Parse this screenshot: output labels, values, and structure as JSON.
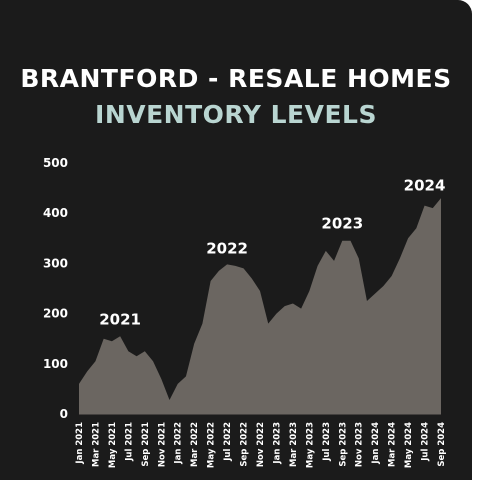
{
  "title_line1": "BRANTFORD - RESALE HOMES",
  "title_line2": "INVENTORY LEVELS",
  "colors": {
    "background": "#1b1b1b",
    "area_fill": "#6b6661",
    "title_primary": "#ffffff",
    "title_accent": "#b9d5d1",
    "text": "#ffffff"
  },
  "chart_data": {
    "type": "area",
    "title": "BRANTFORD - RESALE HOMES INVENTORY LEVELS",
    "xlabel": "",
    "ylabel": "",
    "ylim": [
      0,
      500
    ],
    "yticks": [
      0,
      100,
      200,
      300,
      400,
      500
    ],
    "grid": false,
    "x": [
      "Jan 2021",
      "Feb 2021",
      "Mar 2021",
      "Apr 2021",
      "May 2021",
      "Jun 2021",
      "Jul 2021",
      "Aug 2021",
      "Sep 2021",
      "Oct 2021",
      "Nov 2021",
      "Dec 2021",
      "Jan 2022",
      "Feb 2022",
      "Mar 2022",
      "Apr 2022",
      "May 2022",
      "Jun 2022",
      "Jul 2022",
      "Aug 2022",
      "Sep 2022",
      "Oct 2022",
      "Nov 2022",
      "Dec 2022",
      "Jan 2023",
      "Feb 2023",
      "Mar 2023",
      "Apr 2023",
      "May 2023",
      "Jun 2023",
      "Jul 2023",
      "Aug 2023",
      "Sep 2023",
      "Oct 2023",
      "Nov 2023",
      "Dec 2023",
      "Jan 2024",
      "Feb 2024",
      "Mar 2024",
      "Apr 2024",
      "May 2024",
      "Jun 2024",
      "Jul 2024",
      "Aug 2024",
      "Sep 2024"
    ],
    "xtick_labels": [
      "Jan 2021",
      "Mar 2021",
      "May 2021",
      "Jul 2021",
      "Sep 2021",
      "Nov 2021",
      "Jan 2022",
      "Mar 2022",
      "May 2022",
      "Jul 2022",
      "Sep 2022",
      "Nov 2022",
      "Jan 2023",
      "Mar 2023",
      "May 2023",
      "Jul 2023",
      "Sep 2023",
      "Nov 2023",
      "Jan 2024",
      "Mar 2024",
      "May 2024",
      "Jul 2024",
      "Sep 2024"
    ],
    "series": [
      {
        "values": [
          60,
          85,
          105,
          150,
          145,
          155,
          125,
          115,
          125,
          105,
          70,
          28,
          60,
          75,
          140,
          180,
          265,
          285,
          298,
          295,
          290,
          270,
          245,
          180,
          200,
          215,
          220,
          210,
          245,
          295,
          325,
          305,
          345,
          345,
          310,
          225,
          240,
          255,
          275,
          310,
          350,
          370,
          415,
          410,
          430
        ]
      }
    ],
    "annotations": [
      {
        "text": "2021",
        "x": "Jun 2021",
        "y": 178
      },
      {
        "text": "2022",
        "x": "Jul 2022",
        "y": 320
      },
      {
        "text": "2023",
        "x": "Sep 2023",
        "y": 370
      },
      {
        "text": "2024",
        "x": "Jul 2024",
        "y": 445
      }
    ]
  }
}
